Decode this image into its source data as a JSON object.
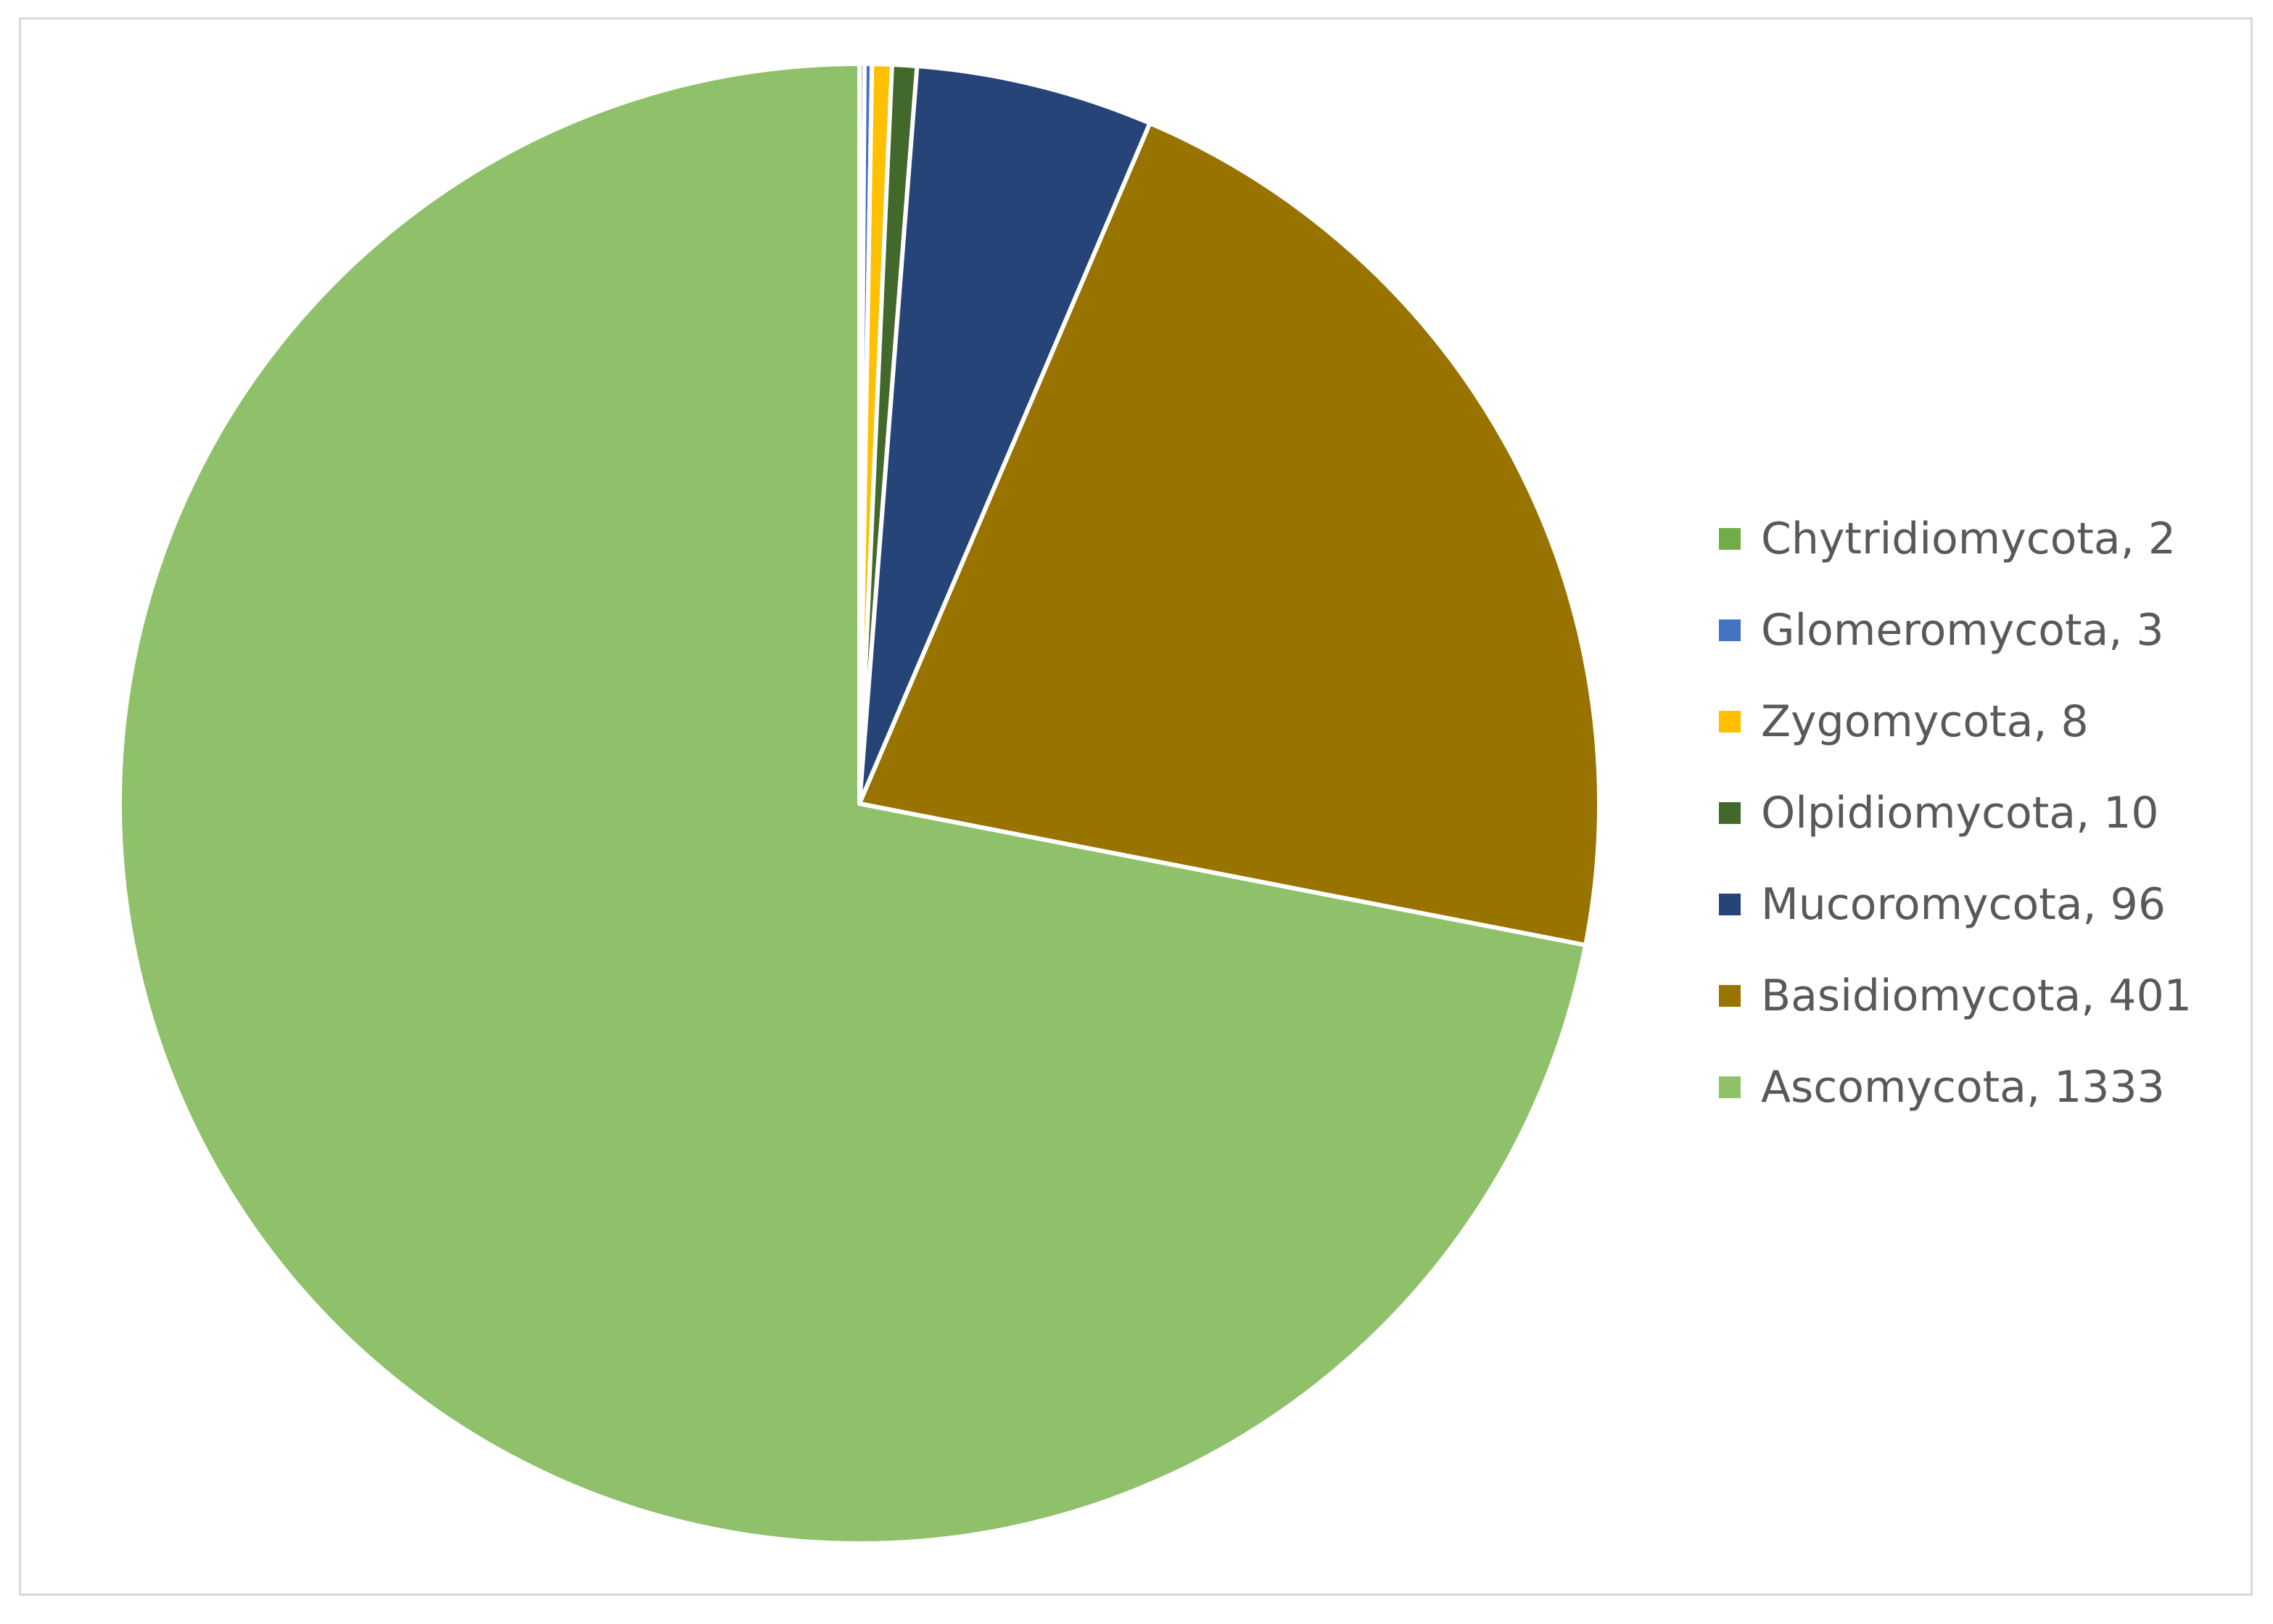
{
  "chart_data": {
    "type": "pie",
    "title": "",
    "start_angle_deg": 0,
    "direction": "clockwise",
    "slices": [
      {
        "label": "Chytridiomycota, 2",
        "name": "Chytridiomycota",
        "value": 2,
        "color": "#70ad47"
      },
      {
        "label": "Glomeromycota, 3",
        "name": "Glomeromycota",
        "value": 3,
        "color": "#4472c4"
      },
      {
        "label": "Zygomycota, 8",
        "name": "Zygomycota",
        "value": 8,
        "color": "#ffc000"
      },
      {
        "label": "Olpidiomycota, 10",
        "name": "Olpidiomycota",
        "value": 10,
        "color": "#43682b"
      },
      {
        "label": "Mucoromycota, 96",
        "name": "Mucoromycota",
        "value": 96,
        "color": "#264478"
      },
      {
        "label": "Basidiomycota, 401",
        "name": "Basidiomycota",
        "value": 401,
        "color": "#997300"
      },
      {
        "label": "Ascomycota, 1333",
        "name": "Ascomycota",
        "value": 1333,
        "color": "#8fc16a"
      }
    ],
    "legend_position": "right",
    "slice_border_color": "#ffffff"
  }
}
